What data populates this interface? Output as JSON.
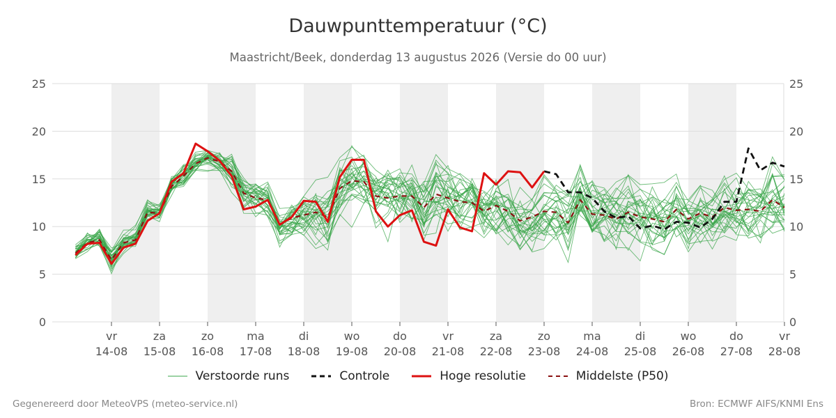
{
  "header": {
    "title": "Dauwpunttemperatuur (°C)",
    "subtitle": "Maastricht/Beek, donderdag 13 augustus 2026 (Versie do 00 uur)"
  },
  "footer": {
    "left": "Gegenereerd door MeteoVPS (meteo-service.nl)",
    "right": "Bron: ECMWF AIFS/KNMI Ens"
  },
  "legend": {
    "ensemble": "Verstoorde runs",
    "control": "Controle",
    "highres": "Hoge resolutie",
    "median": "Middelste (P50)"
  },
  "chart_data": {
    "type": "line",
    "ylim": [
      0,
      25
    ],
    "yticks": [
      0,
      5,
      10,
      15,
      20,
      25
    ],
    "xlim": [
      -0.75,
      14.0
    ],
    "grid": true,
    "legend_position": "bottom",
    "x_axis": {
      "day_labels": [
        "vr",
        "za",
        "zo",
        "ma",
        "di",
        "wo",
        "do",
        "vr",
        "za",
        "zo",
        "ma",
        "di",
        "wo",
        "do",
        "vr"
      ],
      "date_labels": [
        "14-08",
        "15-08",
        "16-08",
        "17-08",
        "18-08",
        "19-08",
        "20-08",
        "21-08",
        "22-08",
        "23-08",
        "24-08",
        "25-08",
        "26-08",
        "27-08",
        "28-08"
      ]
    },
    "colors": {
      "ensemble": "#3aa64a",
      "control": "#111111",
      "highres": "#dd1111",
      "median": "#8b1111",
      "weekend_band": "#efefef",
      "grid": "#dddddd"
    },
    "series": [
      {
        "name": "Hoge resolutie",
        "x": [
          -0.75,
          -0.5,
          -0.25,
          0,
          0.25,
          0.5,
          0.75,
          1.0,
          1.25,
          1.5,
          1.75,
          2.0,
          2.25,
          2.5,
          2.75,
          3.0,
          3.25,
          3.5,
          3.75,
          4.0,
          4.25,
          4.5,
          4.75,
          5.0,
          5.25,
          5.5,
          5.75,
          6.0,
          6.25,
          6.5,
          6.75,
          7.0,
          7.25,
          7.5,
          7.75,
          8.0,
          8.25,
          8.5,
          8.75,
          9.0
        ],
        "values": [
          7.0,
          8.2,
          8.3,
          6.1,
          7.8,
          8.2,
          10.6,
          11.4,
          14.7,
          15.6,
          18.7,
          17.9,
          16.9,
          15.3,
          11.8,
          12.1,
          12.8,
          10.2,
          11.0,
          12.7,
          12.6,
          10.5,
          15.2,
          17.0,
          17.0,
          11.6,
          10.0,
          11.2,
          11.7,
          8.4,
          8.0,
          11.8,
          9.9,
          9.5,
          15.6,
          14.4,
          15.8,
          15.7,
          14.1,
          15.8
        ]
      },
      {
        "name": "Controle",
        "x": [
          9.0,
          9.25,
          9.5,
          9.75,
          10.0,
          10.25,
          10.5,
          10.75,
          11.0,
          11.25,
          11.5,
          11.75,
          12.0,
          12.25,
          12.5,
          12.75,
          13.0,
          13.25,
          13.5,
          13.75,
          14.0
        ],
        "values": [
          15.8,
          15.5,
          13.6,
          13.6,
          13.0,
          11.6,
          10.9,
          11.1,
          9.8,
          10.1,
          9.7,
          10.5,
          10.4,
          9.9,
          10.8,
          12.6,
          12.6,
          18.2,
          15.9,
          16.7,
          16.3
        ]
      },
      {
        "name": "Middelste (P50)",
        "x": [
          -0.75,
          -0.5,
          -0.25,
          0,
          0.25,
          0.5,
          0.75,
          1.0,
          1.25,
          1.5,
          1.75,
          2.0,
          2.25,
          2.5,
          2.75,
          3.0,
          3.25,
          3.5,
          3.75,
          4.0,
          4.25,
          4.5,
          4.75,
          5.0,
          5.25,
          5.5,
          5.75,
          6.0,
          6.25,
          6.5,
          6.75,
          7.0,
          7.25,
          7.5,
          7.75,
          8.0,
          8.25,
          8.5,
          8.75,
          9.0,
          9.25,
          9.5,
          9.75,
          10.0,
          10.25,
          10.5,
          10.75,
          11.0,
          11.25,
          11.5,
          11.75,
          12.0,
          12.25,
          12.5,
          12.75,
          13.0,
          13.25,
          13.5,
          13.75,
          14.0
        ],
        "values": [
          7.2,
          8.3,
          8.6,
          6.5,
          8.3,
          8.6,
          11.5,
          11.4,
          14.2,
          15.3,
          16.6,
          17.2,
          16.8,
          15.8,
          13.5,
          13.0,
          12.8,
          10.2,
          10.9,
          11.2,
          11.5,
          11.0,
          14.0,
          14.8,
          14.7,
          13.2,
          13.0,
          13.2,
          13.2,
          12.0,
          13.4,
          13.0,
          12.6,
          12.5,
          11.6,
          12.2,
          11.6,
          10.6,
          11.0,
          11.6,
          11.5,
          10.4,
          12.8,
          11.3,
          11.2,
          10.8,
          11.5,
          11.0,
          10.8,
          10.5,
          11.8,
          10.8,
          11.4,
          11.0,
          12.0,
          11.7,
          11.8,
          11.6,
          12.8,
          12.0
        ]
      }
    ],
    "ensemble_runs": 30
  }
}
